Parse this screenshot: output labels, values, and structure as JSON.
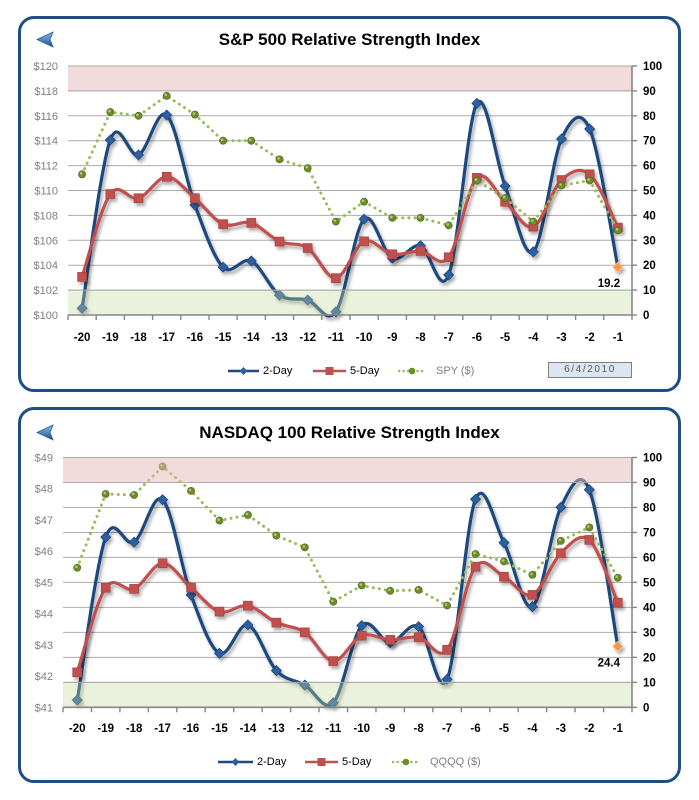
{
  "date_box": {
    "value": "6/4/2010"
  },
  "icons": {
    "back": "back-arrow-icon"
  },
  "chart_data": [
    {
      "type": "line",
      "title": "S&P 500 Relative Strength Index",
      "categories": [
        "-20",
        "-19",
        "-18",
        "-17",
        "-16",
        "-15",
        "-14",
        "-13",
        "-12",
        "-11",
        "-10",
        "-9",
        "-8",
        "-7",
        "-6",
        "-5",
        "-4",
        "-3",
        "-2",
        "-1"
      ],
      "series": [
        {
          "name": "2-Day",
          "axis": "right",
          "line": "smooth",
          "marker": "diamond",
          "color": "#1F497D",
          "marker_color": "#2E5FA0",
          "values": [
            2.7,
            70.3,
            64.3,
            80.3,
            44.2,
            19.2,
            21.7,
            8.0,
            6.0,
            1.3,
            38.5,
            22.8,
            27.8,
            16.1,
            85.0,
            51.8,
            25.4,
            70.7,
            74.7,
            19.2
          ]
        },
        {
          "name": "5-Day",
          "axis": "right",
          "line": "smooth",
          "marker": "square",
          "color": "#C0504D",
          "marker_color": "#C0504D",
          "values": [
            15.3,
            48.6,
            46.9,
            55.5,
            46.9,
            36.5,
            37.0,
            29.5,
            26.9,
            14.8,
            29.6,
            24.4,
            25.7,
            23.2,
            55.1,
            45.5,
            35.5,
            54.2,
            56.5,
            35.1
          ]
        },
        {
          "name": "SPY ($)",
          "axis": "left",
          "line": "dotted",
          "marker": "circle",
          "color": "#9BBB59",
          "marker_color": "#6B8E23",
          "values": [
            111.3,
            116.3,
            116.0,
            117.6,
            116.1,
            114.0,
            114.0,
            112.5,
            111.8,
            107.5,
            109.1,
            107.8,
            107.8,
            107.2,
            110.8,
            109.4,
            107.5,
            110.4,
            110.8,
            106.8
          ]
        }
      ],
      "y_left": {
        "min": 100,
        "max": 120,
        "step": 2,
        "tick_labels": [
          "$100",
          "$102",
          "$104",
          "$106",
          "$108",
          "$110",
          "$112",
          "$114",
          "$116",
          "$118",
          "$120"
        ]
      },
      "y_right": {
        "min": 0,
        "max": 100,
        "step": 10,
        "tick_labels": [
          "0",
          "10",
          "20",
          "30",
          "40",
          "50",
          "60",
          "70",
          "80",
          "90",
          "100"
        ]
      },
      "bands": [
        {
          "axis": "right",
          "from": 90,
          "to": 100,
          "fill": "#E6B9B8",
          "alpha": 0.5
        },
        {
          "axis": "right",
          "from": 0,
          "to": 10,
          "fill": "#C3D69B",
          "alpha": 0.35
        }
      ],
      "annotations": [
        {
          "series": "2-Day",
          "index": 19,
          "text": "19.2",
          "marker_color": "#F79646"
        }
      ],
      "grid": true,
      "legend": "bottom",
      "xlabel": "",
      "ylabel_left": "",
      "ylabel_right": ""
    },
    {
      "type": "line",
      "title": "NASDAQ 100 Relative Strength Index",
      "categories": [
        "-20",
        "-19",
        "-18",
        "-17",
        "-16",
        "-15",
        "-14",
        "-13",
        "-12",
        "-11",
        "-10",
        "-9",
        "-8",
        "-7",
        "-6",
        "-5",
        "-4",
        "-3",
        "-2",
        "-1"
      ],
      "series": [
        {
          "name": "2-Day",
          "axis": "right",
          "line": "smooth",
          "marker": "diamond",
          "color": "#1F497D",
          "marker_color": "#2E5FA0",
          "values": [
            2.9,
            68.1,
            66.1,
            83.1,
            45.0,
            21.6,
            33.0,
            14.7,
            8.9,
            1.8,
            32.7,
            25.9,
            32.3,
            11.2,
            83.3,
            65.9,
            40.3,
            80.1,
            87.1,
            24.4
          ]
        },
        {
          "name": "5-Day",
          "axis": "right",
          "line": "smooth",
          "marker": "square",
          "color": "#C0504D",
          "marker_color": "#C0504D",
          "values": [
            14.0,
            47.9,
            47.4,
            57.7,
            47.9,
            38.3,
            40.7,
            33.9,
            30.0,
            18.5,
            28.7,
            27.0,
            28.0,
            23.0,
            56.3,
            52.3,
            45.0,
            61.7,
            67.0,
            41.9
          ]
        },
        {
          "name": "QQQQ ($)",
          "axis": "left",
          "line": "dotted",
          "marker": "circle",
          "color": "#9BBB59",
          "marker_color": "#6B8E23",
          "values": [
            45.47,
            47.83,
            47.8,
            48.71,
            47.93,
            46.98,
            47.16,
            46.5,
            46.12,
            44.38,
            44.9,
            44.73,
            44.76,
            44.26,
            45.91,
            45.67,
            45.24,
            46.33,
            46.76,
            45.15
          ]
        }
      ],
      "y_left": {
        "min": 41,
        "max": 49,
        "step": 1,
        "tick_labels": [
          "$41",
          "$42",
          "$43",
          "$44",
          "$45",
          "$46",
          "$47",
          "$48",
          "$49"
        ]
      },
      "y_right": {
        "min": 0,
        "max": 100,
        "step": 10,
        "tick_labels": [
          "0",
          "10",
          "20",
          "30",
          "40",
          "50",
          "60",
          "70",
          "80",
          "90",
          "100"
        ]
      },
      "bands": [
        {
          "axis": "right",
          "from": 90,
          "to": 100,
          "fill": "#E6B9B8",
          "alpha": 0.5
        },
        {
          "axis": "right",
          "from": 0,
          "to": 10,
          "fill": "#C3D69B",
          "alpha": 0.35
        }
      ],
      "annotations": [
        {
          "series": "2-Day",
          "index": 19,
          "text": "24.4",
          "marker_color": "#F79646"
        }
      ],
      "grid": true,
      "legend": "bottom",
      "xlabel": "",
      "ylabel_left": "",
      "ylabel_right": ""
    }
  ]
}
